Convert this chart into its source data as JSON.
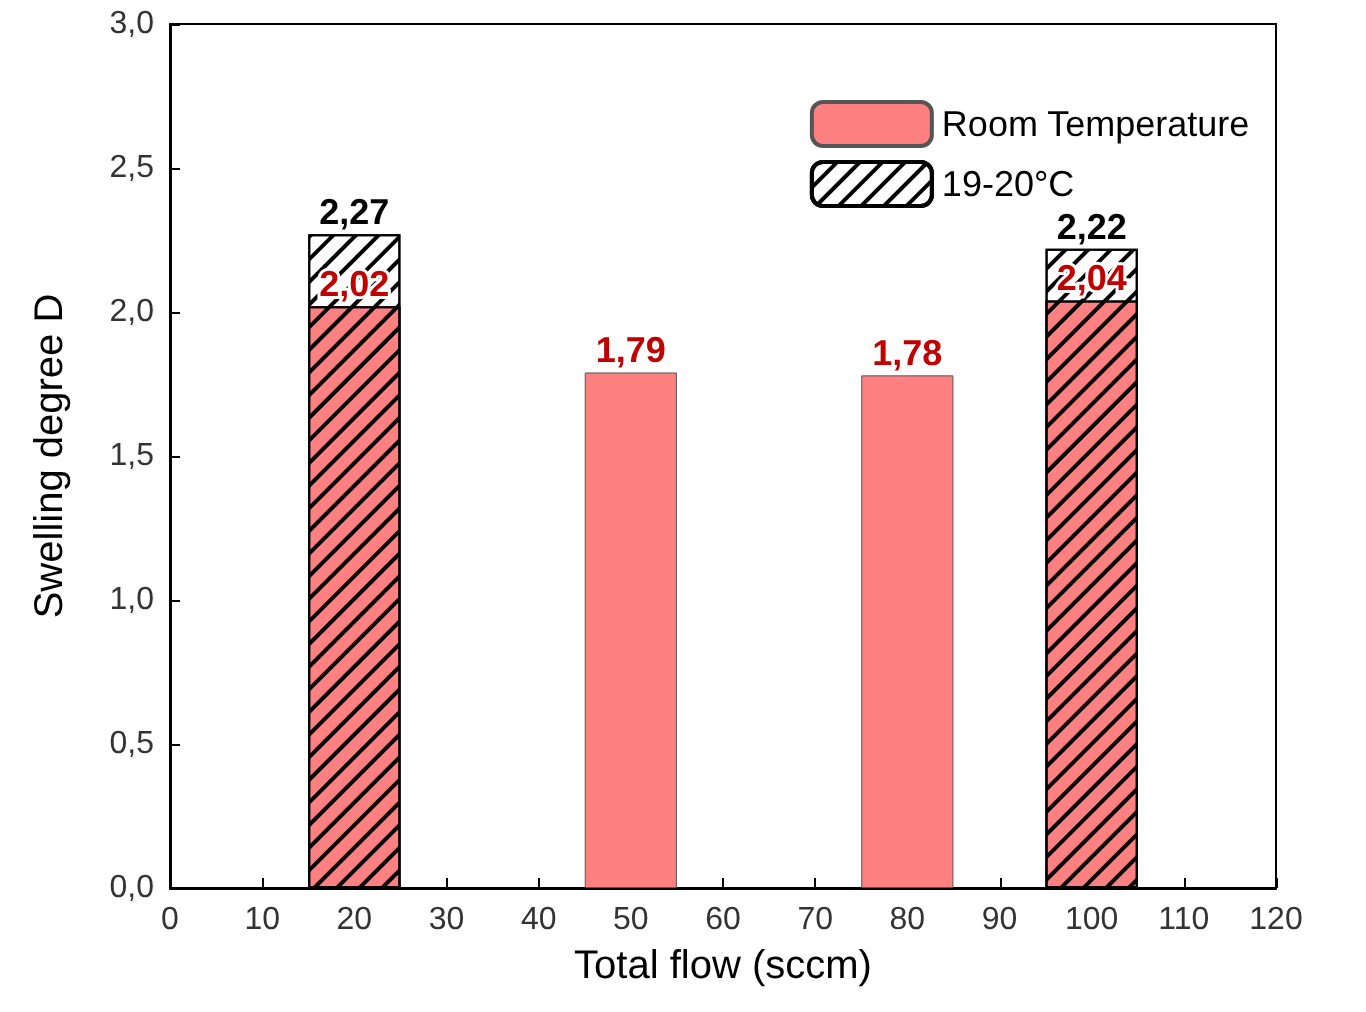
{
  "chart_data": {
    "type": "bar",
    "xlabel": "Total flow (sccm)",
    "ylabel": "Swelling degree D",
    "xlim": [
      0,
      120
    ],
    "xticks": [
      0,
      10,
      20,
      30,
      40,
      50,
      60,
      70,
      80,
      90,
      100,
      110,
      120
    ],
    "ylim": [
      0,
      3
    ],
    "yticks": [
      {
        "value": 0,
        "label": "0,0"
      },
      {
        "value": 0.5,
        "label": "0,5"
      },
      {
        "value": 1,
        "label": "1,0"
      },
      {
        "value": 1.5,
        "label": "1,5"
      },
      {
        "value": 2,
        "label": "2,0"
      },
      {
        "value": 2.5,
        "label": "2,5"
      },
      {
        "value": 3,
        "label": "3,0"
      }
    ],
    "legend": "top right",
    "series": [
      {
        "name": "Room Temperature",
        "color": "#ff8080",
        "x": [
          20,
          50,
          80,
          100
        ],
        "values": [
          2.02,
          1.79,
          1.78,
          2.04
        ],
        "value_labels": [
          "2,02",
          "1,79",
          "1,78",
          "2,04"
        ]
      },
      {
        "name": "19-20°C",
        "color": "#000000",
        "x": [
          20,
          100
        ],
        "values": [
          2.27,
          2.22
        ],
        "value_labels": [
          "2,27",
          "2,22"
        ]
      }
    ]
  }
}
